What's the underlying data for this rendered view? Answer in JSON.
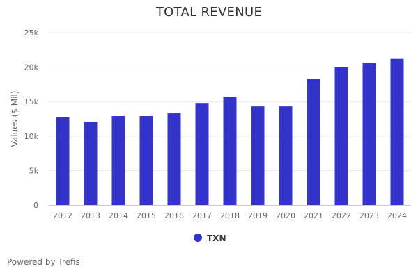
{
  "chart_data": {
    "type": "bar",
    "title": "TOTAL REVENUE",
    "ylabel": "Values ($ Mil)",
    "categories": [
      "2012",
      "2013",
      "2014",
      "2015",
      "2016",
      "2017",
      "2018",
      "2019",
      "2020",
      "2021",
      "2022",
      "2023",
      "2024"
    ],
    "series": [
      {
        "name": "TXN",
        "color": "#3333cc",
        "values": [
          12700,
          12100,
          12900,
          12900,
          13300,
          14800,
          15700,
          14300,
          14300,
          18300,
          20000,
          20600,
          21200
        ]
      }
    ],
    "ylim": [
      0,
      25000
    ],
    "yticks": [
      0,
      5000,
      10000,
      15000,
      20000,
      25000
    ],
    "ytick_labels": [
      "0",
      "5k",
      "10k",
      "15k",
      "20k",
      "25k"
    ],
    "grid": true,
    "legend": "bottom-center"
  },
  "footer": {
    "credit": "Powered by Trefis"
  }
}
